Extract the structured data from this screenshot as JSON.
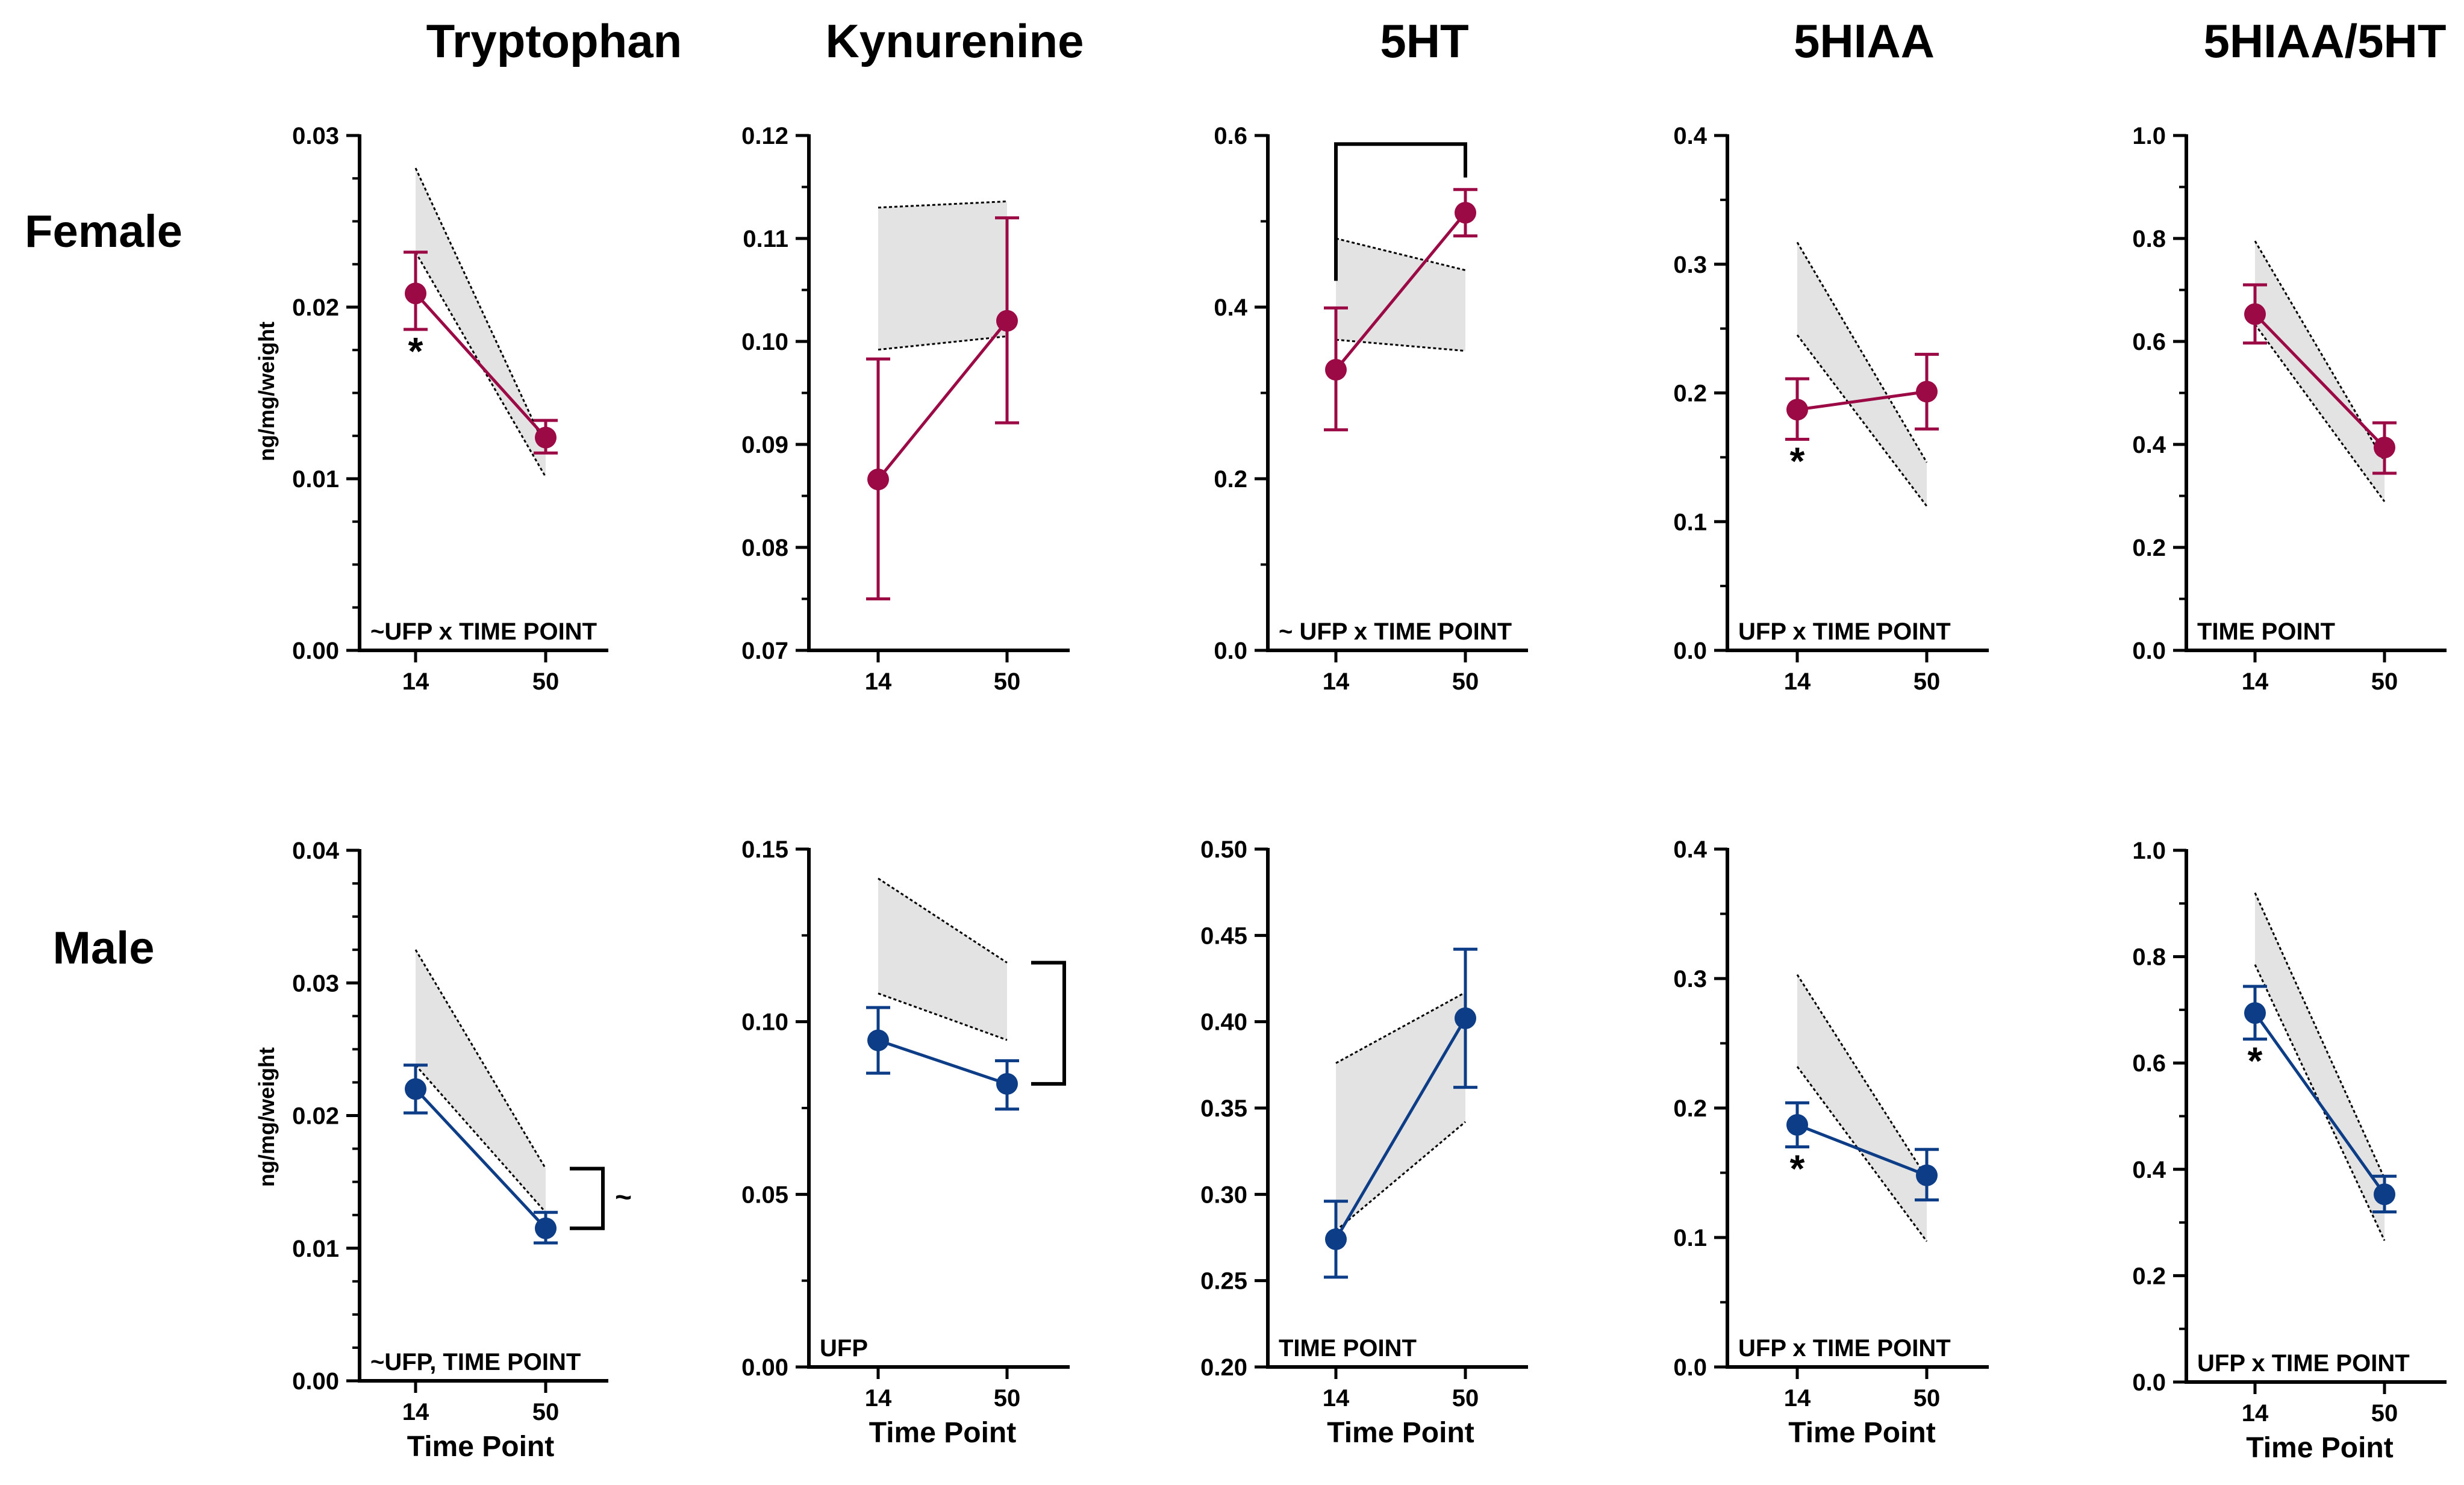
{
  "colors": {
    "female": "#9b0a45",
    "male": "#0d3d86",
    "band_fill": "#e3e3e3",
    "axis": "#000000"
  },
  "column_titles": [
    "Tryptophan",
    "Kynurenine",
    "5HT",
    "5HIAA",
    "5HIAA/5HT"
  ],
  "row_labels": [
    "Female",
    "Male"
  ],
  "y_axis_label": "ng/mg/weight",
  "x_axis_label": "Time Point",
  "chart_data": [
    {
      "id": "f-trp",
      "type": "line",
      "row": 0,
      "col": 0,
      "title": "Tryptophan",
      "group": "Female",
      "x": [
        "14",
        "50"
      ],
      "mean": [
        0.0208,
        0.0124
      ],
      "err_low": [
        0.0187,
        0.0115
      ],
      "err_high": [
        0.0232,
        0.0134
      ],
      "band_upper": [
        0.0281,
        0.0118
      ],
      "band_lower": [
        0.0232,
        0.0101
      ],
      "ylim": [
        0.0,
        0.03
      ],
      "yticks": [
        "0.00",
        "0.01",
        "0.02",
        "0.03"
      ],
      "minor": 3,
      "ylabel": "ng/mg/weight",
      "xlabel": "",
      "annotation": "~UFP x TIME POINT",
      "stars": [
        0
      ],
      "bracket": null,
      "bracket_label": null
    },
    {
      "id": "f-kyn",
      "type": "line",
      "row": 0,
      "col": 1,
      "title": "Kynurenine",
      "group": "Female",
      "x": [
        "14",
        "50"
      ],
      "mean": [
        0.0866,
        0.102
      ],
      "err_low": [
        0.075,
        0.0921
      ],
      "err_high": [
        0.0983,
        0.112
      ],
      "band_upper": [
        0.113,
        0.1136
      ],
      "band_lower": [
        0.0992,
        0.1005
      ],
      "ylim": [
        0.07,
        0.12
      ],
      "yticks": [
        "0.07",
        "0.08",
        "0.09",
        "0.10",
        "0.11",
        "0.12"
      ],
      "minor": 1,
      "ylabel": "",
      "xlabel": "",
      "annotation": "",
      "stars": [],
      "bracket": null,
      "bracket_label": null
    },
    {
      "id": "f-5ht",
      "type": "line",
      "row": 0,
      "col": 2,
      "title": "5HT",
      "group": "Female",
      "x": [
        "14",
        "50"
      ],
      "mean": [
        0.327,
        0.51
      ],
      "err_low": [
        0.257,
        0.483
      ],
      "err_high": [
        0.399,
        0.537
      ],
      "band_upper": [
        0.48,
        0.443
      ],
      "band_lower": [
        0.362,
        0.349
      ],
      "ylim": [
        0.0,
        0.6
      ],
      "yticks": [
        "0.0",
        "0.2",
        "0.4",
        "0.6"
      ],
      "minor": 1,
      "ylabel": "",
      "xlabel": "",
      "annotation": "~ UFP x TIME POINT",
      "stars": [],
      "bracket": "top",
      "bracket_label": null
    },
    {
      "id": "f-5hiaa",
      "type": "line",
      "row": 0,
      "col": 3,
      "title": "5HIAA",
      "group": "Female",
      "x": [
        "14",
        "50"
      ],
      "mean": [
        0.187,
        0.201
      ],
      "err_low": [
        0.164,
        0.172
      ],
      "err_high": [
        0.211,
        0.23
      ],
      "band_upper": [
        0.317,
        0.146
      ],
      "band_lower": [
        0.245,
        0.112
      ],
      "ylim": [
        0.0,
        0.4
      ],
      "yticks": [
        "0.0",
        "0.1",
        "0.2",
        "0.3",
        "0.4"
      ],
      "minor": 1,
      "ylabel": "",
      "xlabel": "",
      "annotation": "UFP x TIME POINT",
      "stars": [
        0
      ],
      "bracket": null,
      "bracket_label": null
    },
    {
      "id": "f-ratio",
      "type": "line",
      "row": 0,
      "col": 4,
      "title": "5HIAA/5HT",
      "group": "Female",
      "x": [
        "14",
        "50"
      ],
      "mean": [
        0.653,
        0.394
      ],
      "err_low": [
        0.597,
        0.344
      ],
      "err_high": [
        0.71,
        0.442
      ],
      "band_upper": [
        0.795,
        0.367
      ],
      "band_lower": [
        0.633,
        0.289
      ],
      "ylim": [
        0.0,
        1.0
      ],
      "yticks": [
        "0.0",
        "0.2",
        "0.4",
        "0.6",
        "0.8",
        "1.0"
      ],
      "minor": 1,
      "ylabel": "",
      "xlabel": "",
      "annotation": "TIME POINT",
      "stars": [],
      "bracket": null,
      "bracket_label": null
    },
    {
      "id": "m-trp",
      "type": "line",
      "row": 1,
      "col": 0,
      "title": "Tryptophan",
      "group": "Male",
      "x": [
        "14",
        "50"
      ],
      "mean": [
        0.022,
        0.0115
      ],
      "err_low": [
        0.0202,
        0.0104
      ],
      "err_high": [
        0.0238,
        0.0127
      ],
      "band_upper": [
        0.0325,
        0.016
      ],
      "band_lower": [
        0.0238,
        0.0127
      ],
      "ylim": [
        0.0,
        0.04
      ],
      "yticks": [
        "0.00",
        "0.01",
        "0.02",
        "0.03",
        "0.04"
      ],
      "minor": 3,
      "ylabel": "ng/mg/weight",
      "xlabel": "Time Point",
      "annotation": "~UFP, TIME POINT",
      "stars": [],
      "bracket": "right",
      "bracket_label": "~"
    },
    {
      "id": "m-kyn",
      "type": "line",
      "row": 1,
      "col": 1,
      "title": "Kynurenine",
      "group": "Male",
      "x": [
        "14",
        "50"
      ],
      "mean": [
        0.0946,
        0.082
      ],
      "err_low": [
        0.0851,
        0.0747
      ],
      "err_high": [
        0.1041,
        0.0887
      ],
      "band_upper": [
        0.1415,
        0.1171
      ],
      "band_lower": [
        0.1082,
        0.0947
      ],
      "ylim": [
        0.0,
        0.15
      ],
      "yticks": [
        "0.00",
        "0.05",
        "0.10",
        "0.15"
      ],
      "minor": 1,
      "ylabel": "",
      "xlabel": "Time Point",
      "annotation": "UFP",
      "stars": [],
      "bracket": "right",
      "bracket_label": null
    },
    {
      "id": "m-5ht",
      "type": "line",
      "row": 1,
      "col": 2,
      "title": "5HT",
      "group": "Male",
      "x": [
        "14",
        "50"
      ],
      "mean": [
        0.274,
        0.402
      ],
      "err_low": [
        0.252,
        0.362
      ],
      "err_high": [
        0.296,
        0.442
      ],
      "band_upper": [
        0.376,
        0.417
      ],
      "band_lower": [
        0.279,
        0.342
      ],
      "ylim": [
        0.2,
        0.5
      ],
      "yticks": [
        "0.20",
        "0.25",
        "0.30",
        "0.35",
        "0.40",
        "0.45",
        "0.50"
      ],
      "minor": 0,
      "ylabel": "",
      "xlabel": "Time Point",
      "annotation": "TIME POINT",
      "stars": [],
      "bracket": null,
      "bracket_label": null
    },
    {
      "id": "m-5hiaa",
      "type": "line",
      "row": 1,
      "col": 3,
      "title": "5HIAA",
      "group": "Male",
      "x": [
        "14",
        "50"
      ],
      "mean": [
        0.187,
        0.148
      ],
      "err_low": [
        0.17,
        0.129
      ],
      "err_high": [
        0.204,
        0.168
      ],
      "band_upper": [
        0.303,
        0.146
      ],
      "band_lower": [
        0.232,
        0.097
      ],
      "ylim": [
        0.0,
        0.4
      ],
      "yticks": [
        "0.0",
        "0.1",
        "0.2",
        "0.3",
        "0.4"
      ],
      "minor": 1,
      "ylabel": "",
      "xlabel": "Time Point",
      "annotation": "UFP x TIME POINT",
      "stars": [
        0
      ],
      "bracket": null,
      "bracket_label": null
    },
    {
      "id": "m-ratio",
      "type": "line",
      "row": 1,
      "col": 4,
      "title": "5HIAA/5HT",
      "group": "Male",
      "x": [
        "14",
        "50"
      ],
      "mean": [
        0.694,
        0.353
      ],
      "err_low": [
        0.645,
        0.32
      ],
      "err_high": [
        0.744,
        0.387
      ],
      "band_upper": [
        0.92,
        0.383
      ],
      "band_lower": [
        0.785,
        0.266
      ],
      "ylim": [
        0.0,
        1.0
      ],
      "yticks": [
        "0.0",
        "0.2",
        "0.4",
        "0.6",
        "0.8",
        "1.0"
      ],
      "minor": 1,
      "ylabel": "",
      "xlabel": "Time Point",
      "annotation": "UFP x TIME POINT",
      "stars": [
        0
      ],
      "bracket": null,
      "bracket_label": null
    }
  ]
}
